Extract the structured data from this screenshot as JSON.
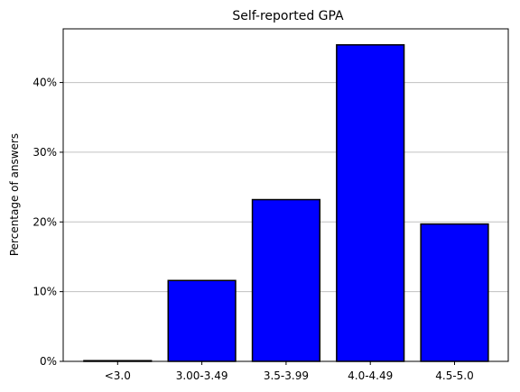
{
  "chart_data": {
    "type": "bar",
    "title": "Self-reported GPA",
    "xlabel": "",
    "ylabel": "Percentage of answers",
    "categories": [
      "<3.0",
      "3.00-3.49",
      "3.5-3.99",
      "4.0-4.49",
      "4.5-5.0"
    ],
    "values": [
      0.1,
      11.6,
      23.2,
      45.4,
      19.7
    ],
    "ylim": [
      0,
      47.7
    ],
    "yticks": [
      0,
      10,
      20,
      30,
      40
    ],
    "ytick_labels": [
      "0%",
      "10%",
      "20%",
      "30%",
      "40%"
    ],
    "grid": "horizontal",
    "bar_color": "#0000ff",
    "edge_color": "#000000",
    "gridline_color": "#c0c0c0"
  }
}
